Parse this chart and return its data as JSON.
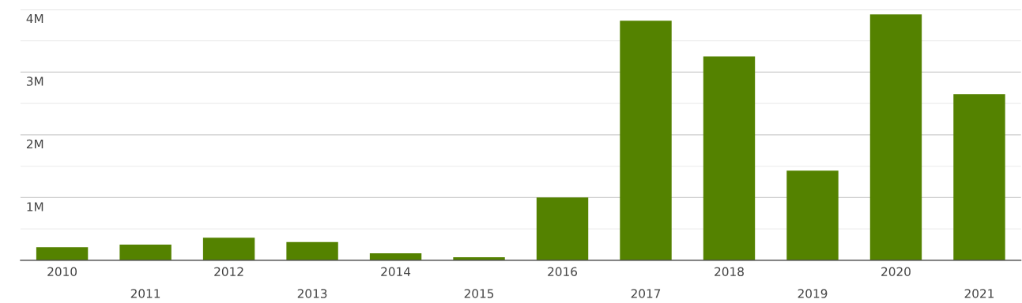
{
  "chart_data": {
    "type": "bar",
    "categories": [
      "2010",
      "2011",
      "2012",
      "2013",
      "2014",
      "2015",
      "2016",
      "2017",
      "2018",
      "2019",
      "2020",
      "2021"
    ],
    "values": [
      210000,
      250000,
      360000,
      290000,
      110000,
      50000,
      1000000,
      3820000,
      3250000,
      1430000,
      3920000,
      2650000
    ],
    "color": "#548200",
    "ylim": [
      0,
      4000000
    ],
    "yticks": [
      {
        "value": 500000,
        "label": null
      },
      {
        "value": 1000000,
        "label": "1M"
      },
      {
        "value": 1500000,
        "label": null
      },
      {
        "value": 2000000,
        "label": "2M"
      },
      {
        "value": 2500000,
        "label": null
      },
      {
        "value": 3000000,
        "label": "3M"
      },
      {
        "value": 3500000,
        "label": null
      },
      {
        "value": 4000000,
        "label": "4M"
      }
    ],
    "grid": "y"
  }
}
